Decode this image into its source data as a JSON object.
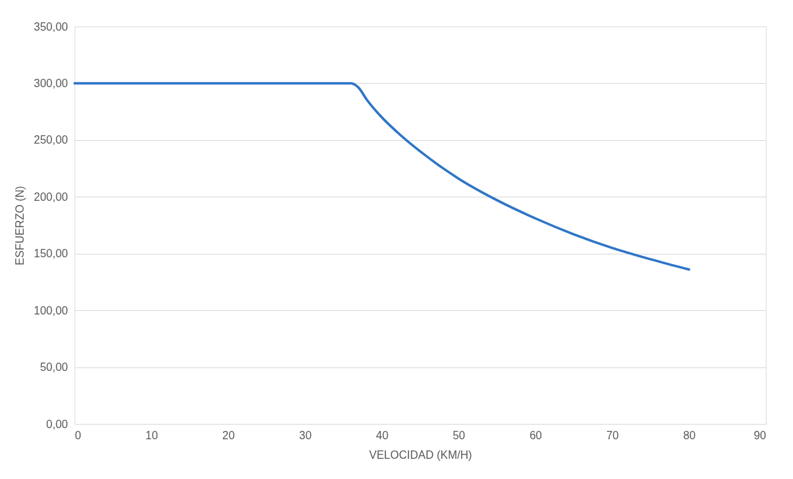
{
  "chart_data": {
    "type": "line",
    "xlabel": "VELOCIDAD (KM/H)",
    "ylabel": "ESFUERZO (N)",
    "x": [
      0,
      10,
      20,
      30,
      35,
      36,
      37,
      38,
      40,
      42,
      45,
      50,
      55,
      60,
      65,
      70,
      75,
      80
    ],
    "series": [
      {
        "color": "#2e75c6",
        "values": [
          300,
          300,
          300,
          300,
          300,
          300,
          296,
          286,
          270,
          257,
          240,
          216,
          197,
          181,
          167,
          155,
          145,
          136
        ]
      }
    ],
    "xlim": [
      0,
      90
    ],
    "xticks": [
      0,
      10,
      20,
      30,
      40,
      50,
      60,
      70,
      80,
      90
    ],
    "ylim": [
      0,
      350
    ],
    "yticks": [
      {
        "value": 0,
        "label": "0,00"
      },
      {
        "value": 50,
        "label": "50,00"
      },
      {
        "value": 100,
        "label": "100,00"
      },
      {
        "value": 150,
        "label": "150,00"
      },
      {
        "value": 200,
        "label": "200,00"
      },
      {
        "value": 250,
        "label": "250,00"
      },
      {
        "value": 300,
        "label": "300,00"
      },
      {
        "value": 350,
        "label": "350,00"
      }
    ],
    "grid": "y",
    "marker": "none",
    "line_style": "solid"
  }
}
